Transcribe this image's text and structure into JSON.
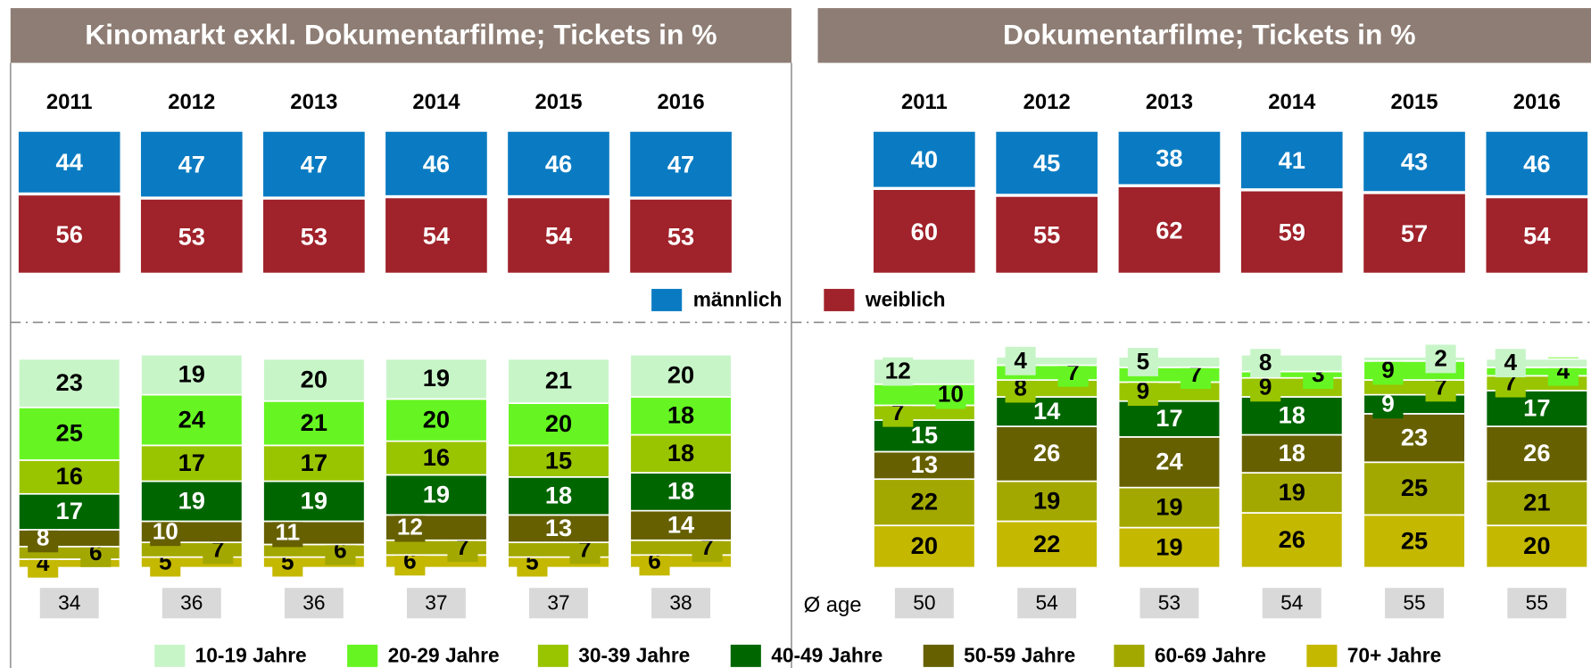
{
  "avg_age_label": "Ø age",
  "chart_data": [
    {
      "type": "stacked_bar",
      "title": "Kinomarkt exkl. Dokumentarfilme; Tickets in %",
      "categories": [
        "2011",
        "2012",
        "2013",
        "2014",
        "2015",
        "2016"
      ],
      "gender_series": [
        {
          "name": "männlich",
          "color": "#0a7bc2",
          "values": [
            44,
            47,
            47,
            46,
            46,
            47
          ]
        },
        {
          "name": "weiblich",
          "color": "#a0222a",
          "values": [
            56,
            53,
            53,
            54,
            54,
            53
          ]
        }
      ],
      "age_series": [
        {
          "name": "10-19 Jahre",
          "color": "#c8f5c8",
          "values": [
            23,
            19,
            20,
            19,
            21,
            20
          ]
        },
        {
          "name": "20-29 Jahre",
          "color": "#66f522",
          "values": [
            25,
            24,
            21,
            20,
            20,
            18
          ]
        },
        {
          "name": "30-39 Jahre",
          "color": "#99c400",
          "values": [
            16,
            17,
            17,
            16,
            15,
            18
          ]
        },
        {
          "name": "40-49 Jahre",
          "color": "#006600",
          "values": [
            17,
            19,
            19,
            19,
            18,
            18
          ]
        },
        {
          "name": "50-59 Jahre",
          "color": "#666000",
          "values": [
            8,
            10,
            11,
            12,
            13,
            14
          ]
        },
        {
          "name": "60-69 Jahre",
          "color": "#a3a800",
          "values": [
            6,
            7,
            6,
            7,
            7,
            7
          ]
        },
        {
          "name": "70+ Jahre",
          "color": "#c4b800",
          "values": [
            4,
            5,
            5,
            6,
            5,
            6
          ]
        }
      ],
      "avg_age": [
        34,
        36,
        36,
        37,
        37,
        38
      ]
    },
    {
      "type": "stacked_bar",
      "title": "Dokumentarfilme; Tickets in %",
      "categories": [
        "2011",
        "2012",
        "2013",
        "2014",
        "2015",
        "2016"
      ],
      "gender_series": [
        {
          "name": "männlich",
          "color": "#0a7bc2",
          "values": [
            40,
            45,
            38,
            41,
            43,
            46
          ]
        },
        {
          "name": "weiblich",
          "color": "#a0222a",
          "values": [
            60,
            55,
            62,
            59,
            57,
            54
          ]
        }
      ],
      "age_series": [
        {
          "name": "10-19 Jahre",
          "color": "#c8f5c8",
          "values": [
            12,
            4,
            5,
            8,
            2,
            4
          ]
        },
        {
          "name": "20-29 Jahre",
          "color": "#66f522",
          "values": [
            10,
            7,
            7,
            3,
            9,
            4
          ]
        },
        {
          "name": "30-39 Jahre",
          "color": "#99c400",
          "values": [
            7,
            8,
            9,
            9,
            7,
            7
          ]
        },
        {
          "name": "40-49 Jahre",
          "color": "#006600",
          "values": [
            15,
            14,
            17,
            18,
            9,
            17
          ]
        },
        {
          "name": "50-59 Jahre",
          "color": "#666000",
          "values": [
            13,
            26,
            24,
            18,
            23,
            26
          ]
        },
        {
          "name": "60-69 Jahre",
          "color": "#a3a800",
          "values": [
            22,
            19,
            19,
            19,
            25,
            21
          ]
        },
        {
          "name": "70+ Jahre",
          "color": "#c4b800",
          "values": [
            20,
            22,
            19,
            26,
            25,
            20
          ]
        }
      ],
      "avg_age": [
        50,
        54,
        53,
        54,
        55,
        55
      ]
    }
  ]
}
